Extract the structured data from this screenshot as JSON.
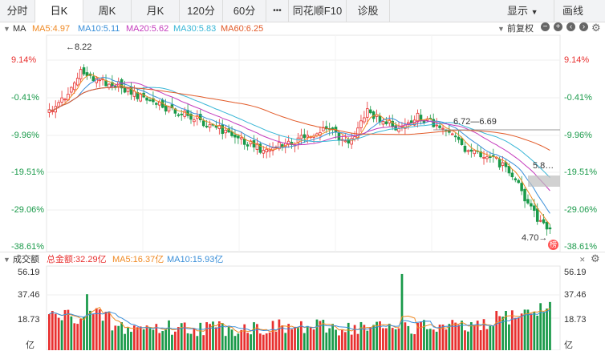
{
  "tabs": [
    {
      "label": "分时"
    },
    {
      "label": "日K"
    },
    {
      "label": "周K"
    },
    {
      "label": "月K"
    },
    {
      "label": "120分"
    },
    {
      "label": "60分"
    },
    {
      "label": "•••"
    },
    {
      "label": "同花顺F10"
    },
    {
      "label": "诊股"
    }
  ],
  "active_tab": "日K",
  "right_menu": {
    "display": "显示",
    "draw": "画线"
  },
  "price_legend": {
    "indicator": "MA",
    "ma5": "MA5:4.97",
    "ma10": "MA10:5.11",
    "ma20": "MA20:5.62",
    "ma30": "MA30:5.83",
    "ma60": "MA60:6.25",
    "adjust": "前复权"
  },
  "price_axis": [
    "9.14%",
    "-0.41%",
    "-9.96%",
    "-19.51%",
    "-29.06%",
    "-38.61%"
  ],
  "annotations": {
    "high": "←8.22",
    "low": "4.70→",
    "range": "6.72—6.69",
    "level": "5.8…",
    "badge": "榜"
  },
  "volume_legend": {
    "indicator": "成交额",
    "total": "总金额:32.29亿",
    "ma5": "MA5:16.37亿",
    "ma10": "MA10:15.93亿"
  },
  "volume_axis": [
    "56.19",
    "37.46",
    "18.73",
    "亿"
  ],
  "colors": {
    "up": "#e8302f",
    "down": "#1a9a4a",
    "ma5": "#f08a24",
    "ma10": "#3a8fd9",
    "ma20": "#c43bbd",
    "ma30": "#37b6d6",
    "ma60": "#e25a28"
  },
  "chart_data": {
    "type": "candlestick",
    "price_range": [
      4.7,
      8.22
    ],
    "volume_range_yi": [
      0,
      56.19
    ],
    "volume_ticks_yi": [
      18.73,
      37.46,
      56.19
    ],
    "volume_unit": "亿"
  }
}
